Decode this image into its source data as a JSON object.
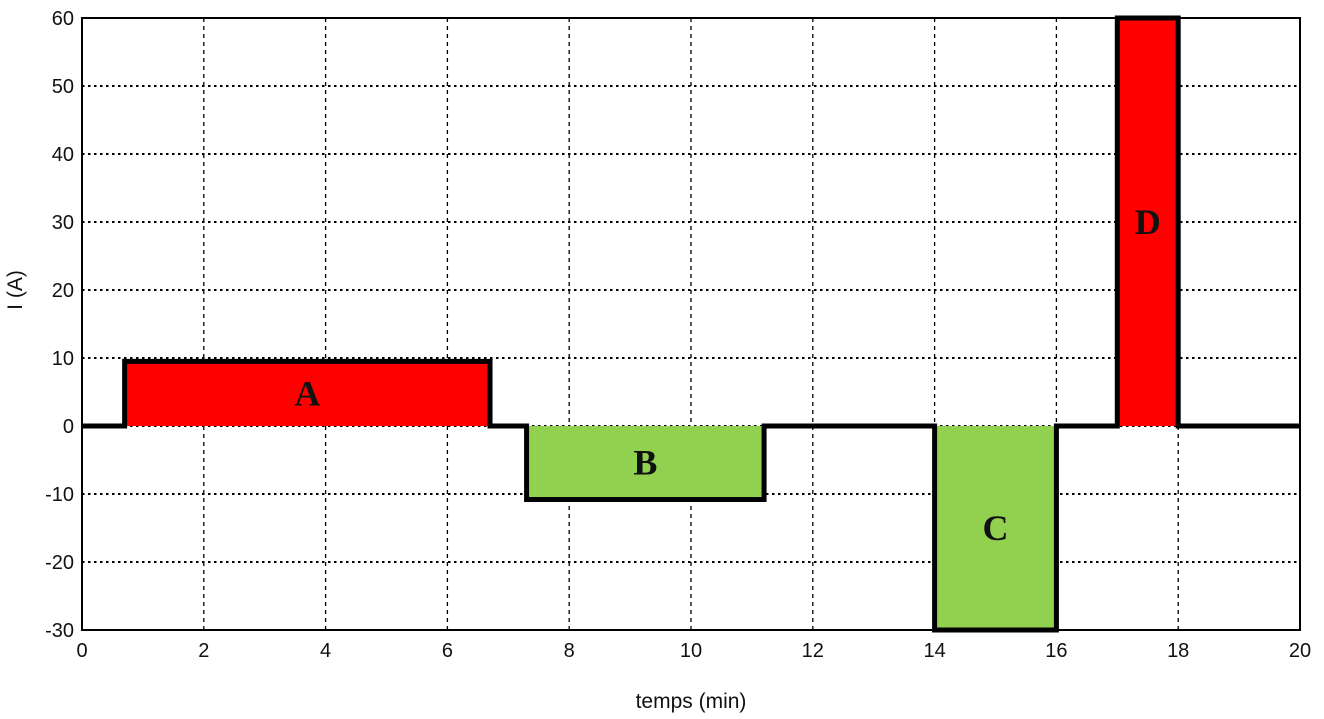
{
  "chart_data": {
    "type": "line",
    "title": "",
    "xlabel": "temps (min)",
    "ylabel": "I (A)",
    "xlim": [
      0,
      20
    ],
    "ylim": [
      -30,
      60
    ],
    "xticks": [
      "0",
      "2",
      "4",
      "6",
      "8",
      "10",
      "12",
      "14",
      "16",
      "18",
      "20"
    ],
    "yticks": [
      "60",
      "50",
      "40",
      "30",
      "20",
      "10",
      "0",
      "-10",
      "-20",
      "-30"
    ],
    "grid": true,
    "series": [
      {
        "x": [
          0,
          0.7,
          0.7,
          6.7,
          6.7,
          7.3,
          7.3,
          11.2,
          11.2,
          14.0,
          14.0,
          16.0,
          16.0,
          17.0,
          17.0,
          18.0,
          18.0,
          20.0
        ],
        "y": [
          0,
          0,
          9.5,
          9.5,
          0,
          0,
          -10.8,
          -10.8,
          0,
          0,
          -30,
          -30,
          0,
          0,
          60,
          60,
          0,
          0
        ]
      }
    ],
    "regions": [
      {
        "label": "A",
        "x0": 0.7,
        "x1": 6.7,
        "y0": 0,
        "y1": 9.5,
        "color": "#ff0000"
      },
      {
        "label": "B",
        "x0": 7.3,
        "x1": 11.2,
        "y0": -10.8,
        "y1": 0,
        "color": "#92d050"
      },
      {
        "label": "C",
        "x0": 14.0,
        "x1": 16.0,
        "y0": -30,
        "y1": 0,
        "color": "#92d050"
      },
      {
        "label": "D",
        "x0": 17.0,
        "x1": 18.0,
        "y0": 0,
        "y1": 60,
        "color": "#ff0000"
      }
    ]
  }
}
